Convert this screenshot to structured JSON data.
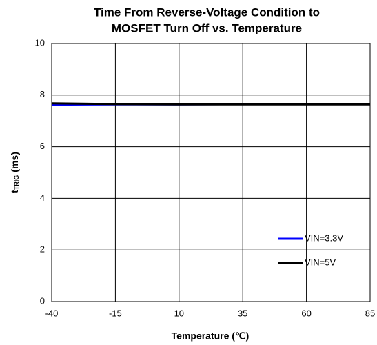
{
  "chart_data": {
    "type": "line",
    "title": [
      "Time From Reverse-Voltage Condition to",
      "MOSFET Turn Off vs. Temperature"
    ],
    "xlabel": "Temperature (℃)",
    "ylabel": [
      "t",
      "TRIG",
      "(ms)"
    ],
    "x": [
      -40,
      -15,
      10,
      35,
      60,
      85
    ],
    "series": [
      {
        "name": "VIN=3.3V",
        "color": "#0000ff",
        "values": [
          7.63,
          7.64,
          7.64,
          7.65,
          7.65,
          7.65
        ]
      },
      {
        "name": "VIN=5V",
        "color": "#000000",
        "values": [
          7.68,
          7.65,
          7.64,
          7.64,
          7.64,
          7.64
        ]
      }
    ],
    "xlim": [
      -40,
      85
    ],
    "xticks": [
      -40,
      -15,
      10,
      35,
      60,
      85
    ],
    "ylim": [
      0,
      10
    ],
    "yticks": [
      0,
      2,
      4,
      6,
      8,
      10
    ],
    "grid": true,
    "legend": "lower right"
  }
}
